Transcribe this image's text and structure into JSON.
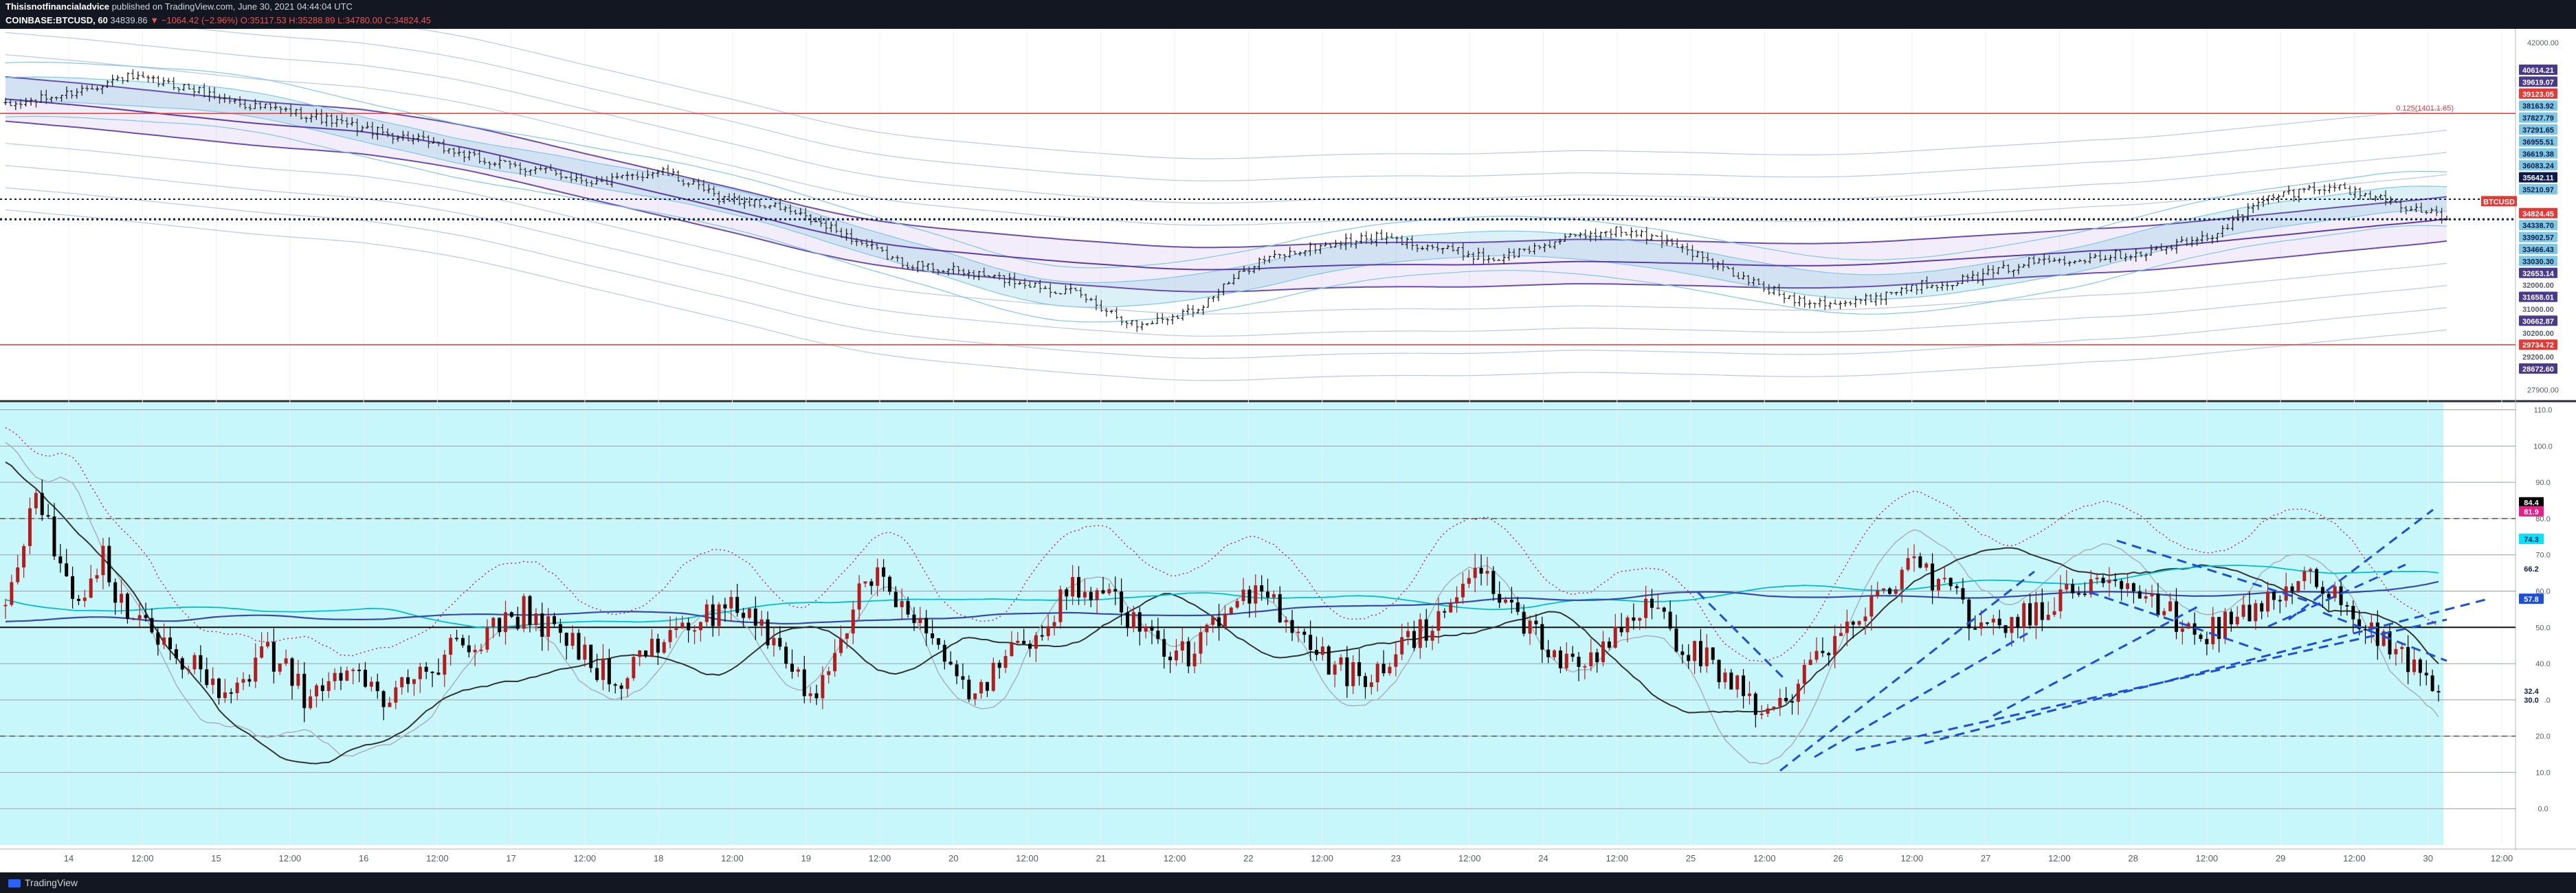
{
  "header": {
    "author": "Thisisnotfinancialadvice",
    "published": "published on TradingView.com, June 30, 2021 04:44:04 UTC",
    "symbol": "COINBASE:BTCUSD, 60",
    "last": "34839.86",
    "change": "▼ −1064.42 (−2.96%)",
    "ohlc": "O:35117.53 H:35288.89 L:34780.00 C:34824.45"
  },
  "footer": {
    "brand": "TradingView"
  },
  "colors": {
    "background": "#ffffff",
    "oscillator_bg": "#c8f7fb",
    "up_candle": "#b71c1c",
    "down_candle": "#000000",
    "resistance": "#e53935",
    "trendline": "#1e4fd8",
    "price_line": "#0d1b4c",
    "band_fill": "#c9a8e8",
    "inner_band": "#7ec8e3"
  },
  "chart_data": [
    {
      "type": "candlestick",
      "title": "COINBASE:BTCUSD, 60",
      "x_ticks": [
        "14",
        "12:00",
        "15",
        "12:00",
        "16",
        "12:00",
        "17",
        "12:00",
        "18",
        "12:00",
        "19",
        "12:00",
        "20",
        "12:00",
        "21",
        "12:00",
        "22",
        "12:00",
        "23",
        "12:00",
        "24",
        "12:00",
        "25",
        "12:00",
        "26",
        "12:00",
        "27",
        "12:00",
        "28",
        "12:00",
        "29",
        "12:00",
        "30",
        "12:00"
      ],
      "y_ticks": [
        42000,
        27900
      ],
      "ylim": [
        27500,
        42500
      ],
      "close_path": [
        39400,
        39900,
        40600,
        40200,
        39500,
        39100,
        38500,
        38000,
        37200,
        36800,
        36300,
        36800,
        35700,
        35300,
        34300,
        33100,
        32700,
        32300,
        31800,
        30500,
        31200,
        33100,
        33700,
        34100,
        33700,
        33200,
        33900,
        34400,
        33900,
        32600,
        31600,
        31400,
        32100,
        32400,
        33100,
        33300,
        33500,
        34100,
        35700,
        36200,
        35600,
        34830
      ],
      "horizontal_levels": [
        {
          "value": 39123.05,
          "label": "0.125(1401.1.65)"
        },
        {
          "value": 29734.72
        }
      ],
      "price_labels": [
        {
          "label": "40614.21",
          "color": "#4a3a8c"
        },
        {
          "label": "39619.07",
          "color": "#4a3a8c"
        },
        {
          "label": "39123.05",
          "color": "#e53935"
        },
        {
          "label": "38163.92",
          "color": "#7ec8e3"
        },
        {
          "label": "37827.79",
          "color": "#7ec8e3"
        },
        {
          "label": "37291.65",
          "color": "#7ec8e3"
        },
        {
          "label": "36955.51",
          "color": "#7ec8e3"
        },
        {
          "label": "36619.38",
          "color": "#7ec8e3"
        },
        {
          "label": "36083.24",
          "color": "#7ec8e3"
        },
        {
          "label": "35642.11",
          "color": "#0d1b4c"
        },
        {
          "label": "35210.97",
          "color": "#7ec8e3"
        },
        {
          "label": "BTCUSD",
          "color": "#e53935"
        },
        {
          "label": "34824.45",
          "color": "#e53935"
        },
        {
          "label": "34338.70",
          "color": "#7ec8e3"
        },
        {
          "label": "33902.57",
          "color": "#7ec8e3"
        },
        {
          "label": "33466.43",
          "color": "#7ec8e3"
        },
        {
          "label": "33030.30",
          "color": "#7ec8e3"
        },
        {
          "label": "32653.14",
          "color": "#4a3a8c"
        },
        {
          "label": "32000.00",
          "color": "#ffffff"
        },
        {
          "label": "31658.01",
          "color": "#4a3a8c"
        },
        {
          "label": "31000.00",
          "color": "#ffffff"
        },
        {
          "label": "30662.87",
          "color": "#4a3a8c"
        },
        {
          "label": "30200.00",
          "color": "#ffffff"
        },
        {
          "label": "29734.72",
          "color": "#e53935"
        },
        {
          "label": "29200.00",
          "color": "#ffffff"
        },
        {
          "label": "28672.60",
          "color": "#4a3a8c"
        }
      ]
    },
    {
      "type": "line",
      "y_ticks": [
        110.0,
        100.0,
        90.0,
        80.0,
        70.0,
        60.0,
        50.0,
        40.0,
        30.0,
        20.0,
        10.0,
        0.0
      ],
      "ylim": [
        -10,
        112
      ],
      "dashed_levels": [
        80,
        20
      ],
      "osc_path": [
        58,
        70,
        88,
        78,
        70,
        56,
        58,
        70,
        60,
        55,
        52,
        48,
        44,
        40,
        38,
        36,
        32,
        34,
        38,
        44,
        40,
        36,
        30,
        33,
        36,
        38,
        35,
        32,
        30,
        34,
        40,
        38,
        42,
        44,
        46,
        48,
        50,
        52,
        55,
        52,
        48,
        46,
        44,
        40,
        38,
        36,
        40,
        44,
        46,
        48,
        50,
        52,
        55,
        58,
        54,
        50,
        46,
        42,
        36,
        32,
        38,
        48,
        55,
        62,
        66,
        60,
        55,
        50,
        44,
        38,
        34,
        32,
        36,
        40,
        44,
        48,
        52,
        56,
        60,
        62,
        60,
        58,
        54,
        50,
        46,
        44,
        42,
        44,
        48,
        52,
        55,
        58,
        60,
        56,
        52,
        48,
        44,
        40,
        38,
        36,
        38,
        40,
        44,
        48,
        50,
        54,
        58,
        62,
        64,
        60,
        56,
        52,
        48,
        44,
        40,
        38,
        42,
        46,
        50,
        54,
        56,
        52,
        48,
        44,
        42,
        40,
        36,
        32,
        28,
        26,
        30,
        34,
        38,
        42,
        46,
        50,
        54,
        58,
        62,
        66,
        68,
        64,
        60,
        56,
        52,
        48,
        50,
        52,
        54,
        56,
        58,
        60,
        62,
        64,
        66,
        64,
        60,
        56,
        54,
        52,
        50,
        48,
        50,
        52,
        54,
        56,
        58,
        60,
        62,
        64,
        62,
        58,
        54,
        50,
        46,
        42,
        38,
        34,
        32
      ],
      "value_labels": [
        {
          "label": "84.4",
          "color": "#000000"
        },
        {
          "label": "81.9",
          "color": "#e91e8c"
        },
        {
          "label": "74.3",
          "color": "#00e5ff"
        },
        {
          "label": "66.2",
          "color": "#ffffff"
        },
        {
          "label": "57.8",
          "color": "#1e4fd8"
        },
        {
          "label": "32.4",
          "color": "#ffffff"
        },
        {
          "label": "30.0",
          "color": "#ffffff"
        }
      ]
    }
  ]
}
